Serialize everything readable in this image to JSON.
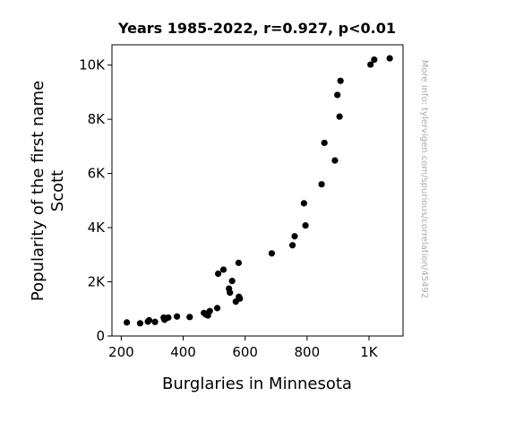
{
  "chart_data": {
    "type": "scatter",
    "title": "Years 1985-2022, r=0.927, p<0.01",
    "xlabel": "Burglaries in Minnesota",
    "ylabel_lines": [
      "Popularity of the first name",
      "Scott"
    ],
    "watermark": "More info: tylervigen.com/spurious/correlation/45492",
    "xlim": [
      170,
      1110
    ],
    "ylim": [
      0,
      10750
    ],
    "x_ticks": [
      {
        "value": 200,
        "label": "200"
      },
      {
        "value": 400,
        "label": "400"
      },
      {
        "value": 600,
        "label": "600"
      },
      {
        "value": 800,
        "label": "800"
      },
      {
        "value": 1000,
        "label": "1K"
      }
    ],
    "y_ticks": [
      {
        "value": 0,
        "label": "0"
      },
      {
        "value": 2000,
        "label": "2K"
      },
      {
        "value": 4000,
        "label": "4K"
      },
      {
        "value": 6000,
        "label": "6K"
      },
      {
        "value": 8000,
        "label": "8K"
      },
      {
        "value": 10000,
        "label": "10K"
      }
    ],
    "point_color": "#000000",
    "points": [
      {
        "x": 1067,
        "y": 10250
      },
      {
        "x": 1017,
        "y": 10200
      },
      {
        "x": 1005,
        "y": 10020
      },
      {
        "x": 908,
        "y": 9420
      },
      {
        "x": 898,
        "y": 8900
      },
      {
        "x": 905,
        "y": 8100
      },
      {
        "x": 856,
        "y": 7130
      },
      {
        "x": 890,
        "y": 6480
      },
      {
        "x": 847,
        "y": 5600
      },
      {
        "x": 790,
        "y": 4900
      },
      {
        "x": 795,
        "y": 4080
      },
      {
        "x": 760,
        "y": 3680
      },
      {
        "x": 753,
        "y": 3350
      },
      {
        "x": 686,
        "y": 3050
      },
      {
        "x": 579,
        "y": 2700
      },
      {
        "x": 530,
        "y": 2450
      },
      {
        "x": 513,
        "y": 2300
      },
      {
        "x": 558,
        "y": 2030
      },
      {
        "x": 548,
        "y": 1750
      },
      {
        "x": 551,
        "y": 1600
      },
      {
        "x": 580,
        "y": 1450
      },
      {
        "x": 583,
        "y": 1380
      },
      {
        "x": 570,
        "y": 1270
      },
      {
        "x": 510,
        "y": 1030
      },
      {
        "x": 486,
        "y": 920
      },
      {
        "x": 467,
        "y": 850
      },
      {
        "x": 474,
        "y": 790
      },
      {
        "x": 480,
        "y": 760
      },
      {
        "x": 421,
        "y": 700
      },
      {
        "x": 380,
        "y": 720
      },
      {
        "x": 352,
        "y": 680
      },
      {
        "x": 337,
        "y": 680
      },
      {
        "x": 340,
        "y": 600
      },
      {
        "x": 309,
        "y": 520
      },
      {
        "x": 290,
        "y": 580
      },
      {
        "x": 286,
        "y": 530
      },
      {
        "x": 261,
        "y": 470
      },
      {
        "x": 218,
        "y": 500
      }
    ]
  }
}
